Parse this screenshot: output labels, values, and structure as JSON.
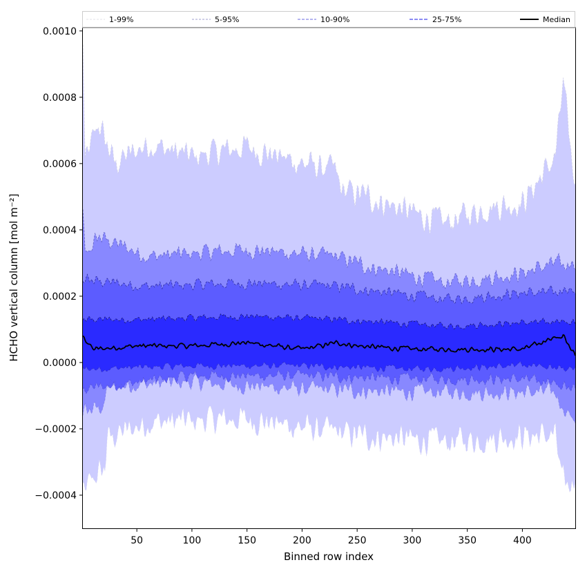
{
  "chart_data": {
    "type": "area",
    "xlabel": "Binned row index",
    "ylabel": "HCHO vertical column [mol m⁻²]",
    "xlim": [
      1,
      448
    ],
    "ylim": [
      -0.0005,
      0.00101
    ],
    "xticks": [
      50,
      100,
      150,
      200,
      250,
      300,
      350,
      400
    ],
    "yticks": [
      -0.0004,
      -0.0002,
      0.0,
      0.0002,
      0.0004,
      0.0006,
      0.0008,
      0.001
    ],
    "ytick_labels": [
      "−0.0004",
      "−0.0002",
      "0.0000",
      "0.0002",
      "0.0004",
      "0.0006",
      "0.0008",
      "0.0010"
    ],
    "xtick_labels": [
      "50",
      "100",
      "150",
      "200",
      "250",
      "300",
      "350",
      "400"
    ],
    "grid": false,
    "legend_position": "top, above plot, single row",
    "legend": [
      "1-99%",
      "5-95%",
      "10-90%",
      "25-75%",
      "Median"
    ],
    "bands": [
      {
        "name": "1-99%",
        "lower_anchors": [
          [
            1,
            -0.0004
          ],
          [
            10,
            -0.00035
          ],
          [
            21,
            -0.00032
          ],
          [
            23,
            -0.00023
          ],
          [
            60,
            -0.00018
          ],
          [
            150,
            -0.00017
          ],
          [
            250,
            -0.00022
          ],
          [
            330,
            -0.00024
          ],
          [
            400,
            -0.00022
          ],
          [
            430,
            -0.00022
          ],
          [
            436,
            -0.00036
          ],
          [
            448,
            -0.00038
          ]
        ],
        "upper_anchors": [
          [
            1,
            0.00095
          ],
          [
            3,
            0.0006
          ],
          [
            15,
            0.00072
          ],
          [
            30,
            0.0006
          ],
          [
            60,
            0.00066
          ],
          [
            100,
            0.00062
          ],
          [
            150,
            0.00065
          ],
          [
            200,
            0.0006
          ],
          [
            230,
            0.00058
          ],
          [
            235,
            0.00052
          ],
          [
            260,
            0.0005
          ],
          [
            300,
            0.00045
          ],
          [
            330,
            0.00042
          ],
          [
            370,
            0.00047
          ],
          [
            400,
            0.00048
          ],
          [
            430,
            0.00062
          ],
          [
            437,
            0.00084
          ],
          [
            448,
            0.00052
          ]
        ],
        "fill": "#ccccff",
        "line_color": "#d0d0e8"
      },
      {
        "name": "5-95%",
        "lower_anchors": [
          [
            1,
            -0.00015
          ],
          [
            21,
            -0.00013
          ],
          [
            23,
            -7e-05
          ],
          [
            100,
            -6e-05
          ],
          [
            200,
            -8e-05
          ],
          [
            300,
            -9e-05
          ],
          [
            400,
            -9e-05
          ],
          [
            430,
            -9e-05
          ],
          [
            436,
            -0.00016
          ],
          [
            448,
            -0.00017
          ]
        ],
        "upper_anchors": [
          [
            1,
            0.00045
          ],
          [
            3,
            0.00032
          ],
          [
            15,
            0.00038
          ],
          [
            60,
            0.00032
          ],
          [
            150,
            0.00034
          ],
          [
            230,
            0.00032
          ],
          [
            260,
            0.00029
          ],
          [
            330,
            0.00024
          ],
          [
            400,
            0.00027
          ],
          [
            430,
            0.0003
          ],
          [
            448,
            0.00028
          ]
        ],
        "fill": "#8888ff",
        "line_color": "#6060c8"
      },
      {
        "name": "10-90%",
        "lower_anchors": [
          [
            1,
            -8e-05
          ],
          [
            100,
            -4e-05
          ],
          [
            200,
            -4e-05
          ],
          [
            300,
            -5e-05
          ],
          [
            400,
            -5e-05
          ],
          [
            448,
            -8e-05
          ]
        ],
        "upper_anchors": [
          [
            1,
            0.00025
          ],
          [
            60,
            0.00023
          ],
          [
            150,
            0.00024
          ],
          [
            230,
            0.00023
          ],
          [
            330,
            0.00019
          ],
          [
            400,
            0.00021
          ],
          [
            448,
            0.00021
          ]
        ],
        "fill": "#5c5cff",
        "line_color": "#3030a0"
      },
      {
        "name": "25-75%",
        "lower_anchors": [
          [
            1,
            -2e-05
          ],
          [
            100,
            -1e-05
          ],
          [
            200,
            -1e-05
          ],
          [
            300,
            -2e-05
          ],
          [
            400,
            -1e-05
          ],
          [
            448,
            -2e-05
          ]
        ],
        "upper_anchors": [
          [
            1,
            0.00013
          ],
          [
            60,
            0.00013
          ],
          [
            150,
            0.00014
          ],
          [
            230,
            0.00013
          ],
          [
            330,
            0.00011
          ],
          [
            400,
            0.00012
          ],
          [
            448,
            0.00012
          ]
        ],
        "fill": "#2a2aff",
        "line_color": "#1a1a70"
      }
    ],
    "median": {
      "name": "Median",
      "anchors": [
        [
          1,
          8e-05
        ],
        [
          10,
          4e-05
        ],
        [
          50,
          5e-05
        ],
        [
          100,
          5e-05
        ],
        [
          150,
          6e-05
        ],
        [
          200,
          4e-05
        ],
        [
          233,
          6e-05
        ],
        [
          250,
          5e-05
        ],
        [
          300,
          4e-05
        ],
        [
          350,
          4e-05
        ],
        [
          400,
          4e-05
        ],
        [
          437,
          8e-05
        ],
        [
          448,
          2e-05
        ]
      ],
      "color": "#000000"
    }
  }
}
